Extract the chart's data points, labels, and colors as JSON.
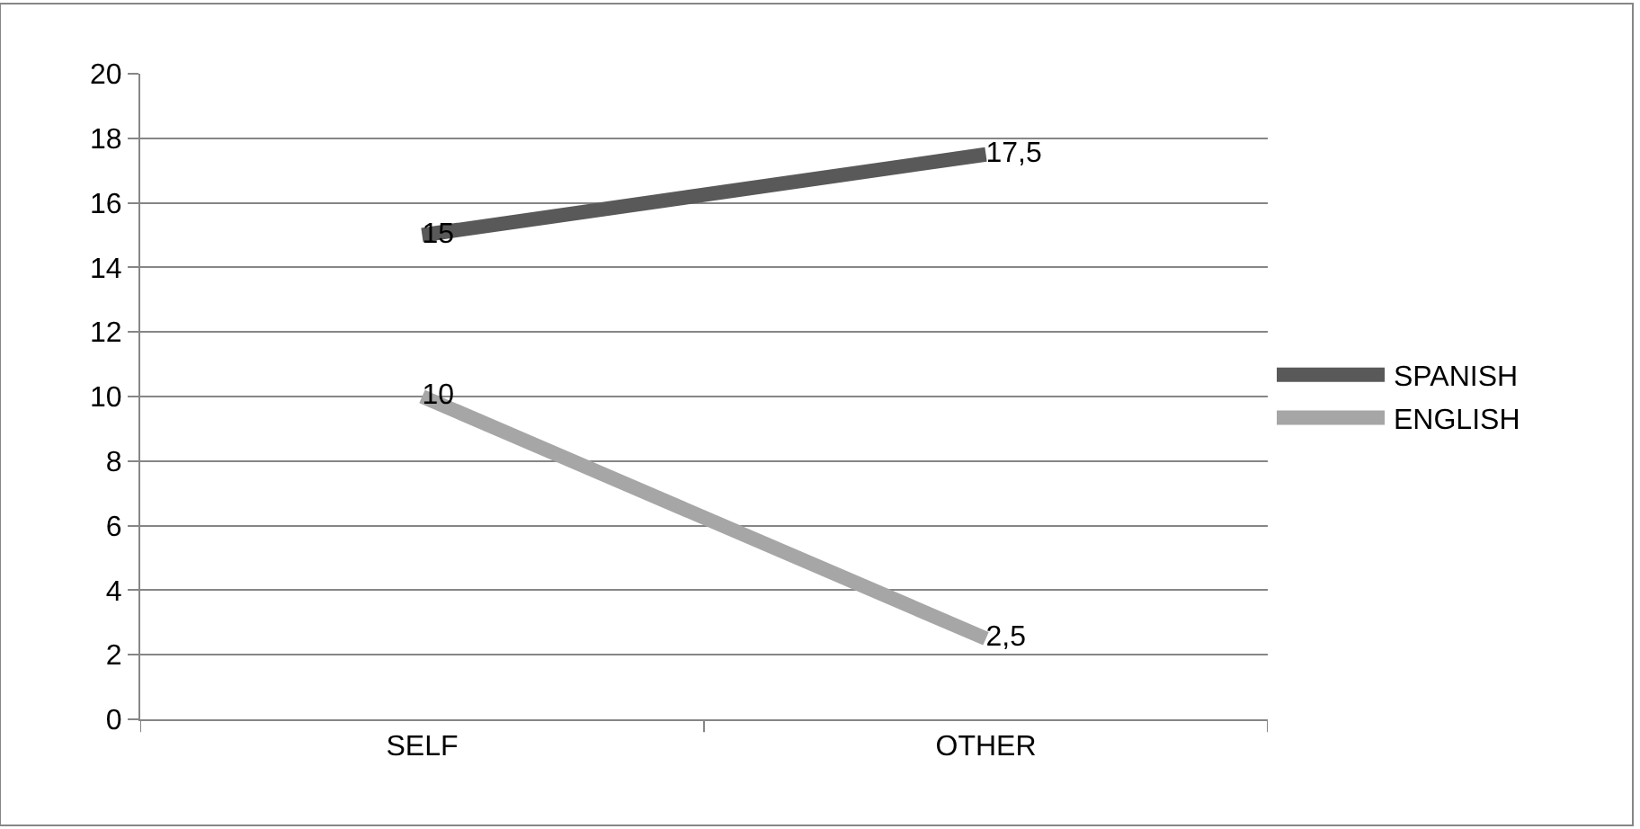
{
  "chart_data": {
    "type": "line",
    "categories": [
      "SELF",
      "OTHER"
    ],
    "series": [
      {
        "name": "SPANISH",
        "color": "#595959",
        "values": [
          15,
          17.5
        ],
        "value_labels": [
          "15",
          "17,5"
        ]
      },
      {
        "name": "ENGLISH",
        "color": "#a6a6a6",
        "values": [
          10,
          2.5
        ],
        "value_labels": [
          "10",
          "2,5"
        ]
      }
    ],
    "ylim": [
      0,
      20
    ],
    "yticks": [
      0,
      2,
      4,
      6,
      8,
      10,
      12,
      14,
      16,
      18,
      20
    ],
    "grid": "y",
    "legend": "right",
    "marker": "none",
    "line_style": "solid"
  }
}
